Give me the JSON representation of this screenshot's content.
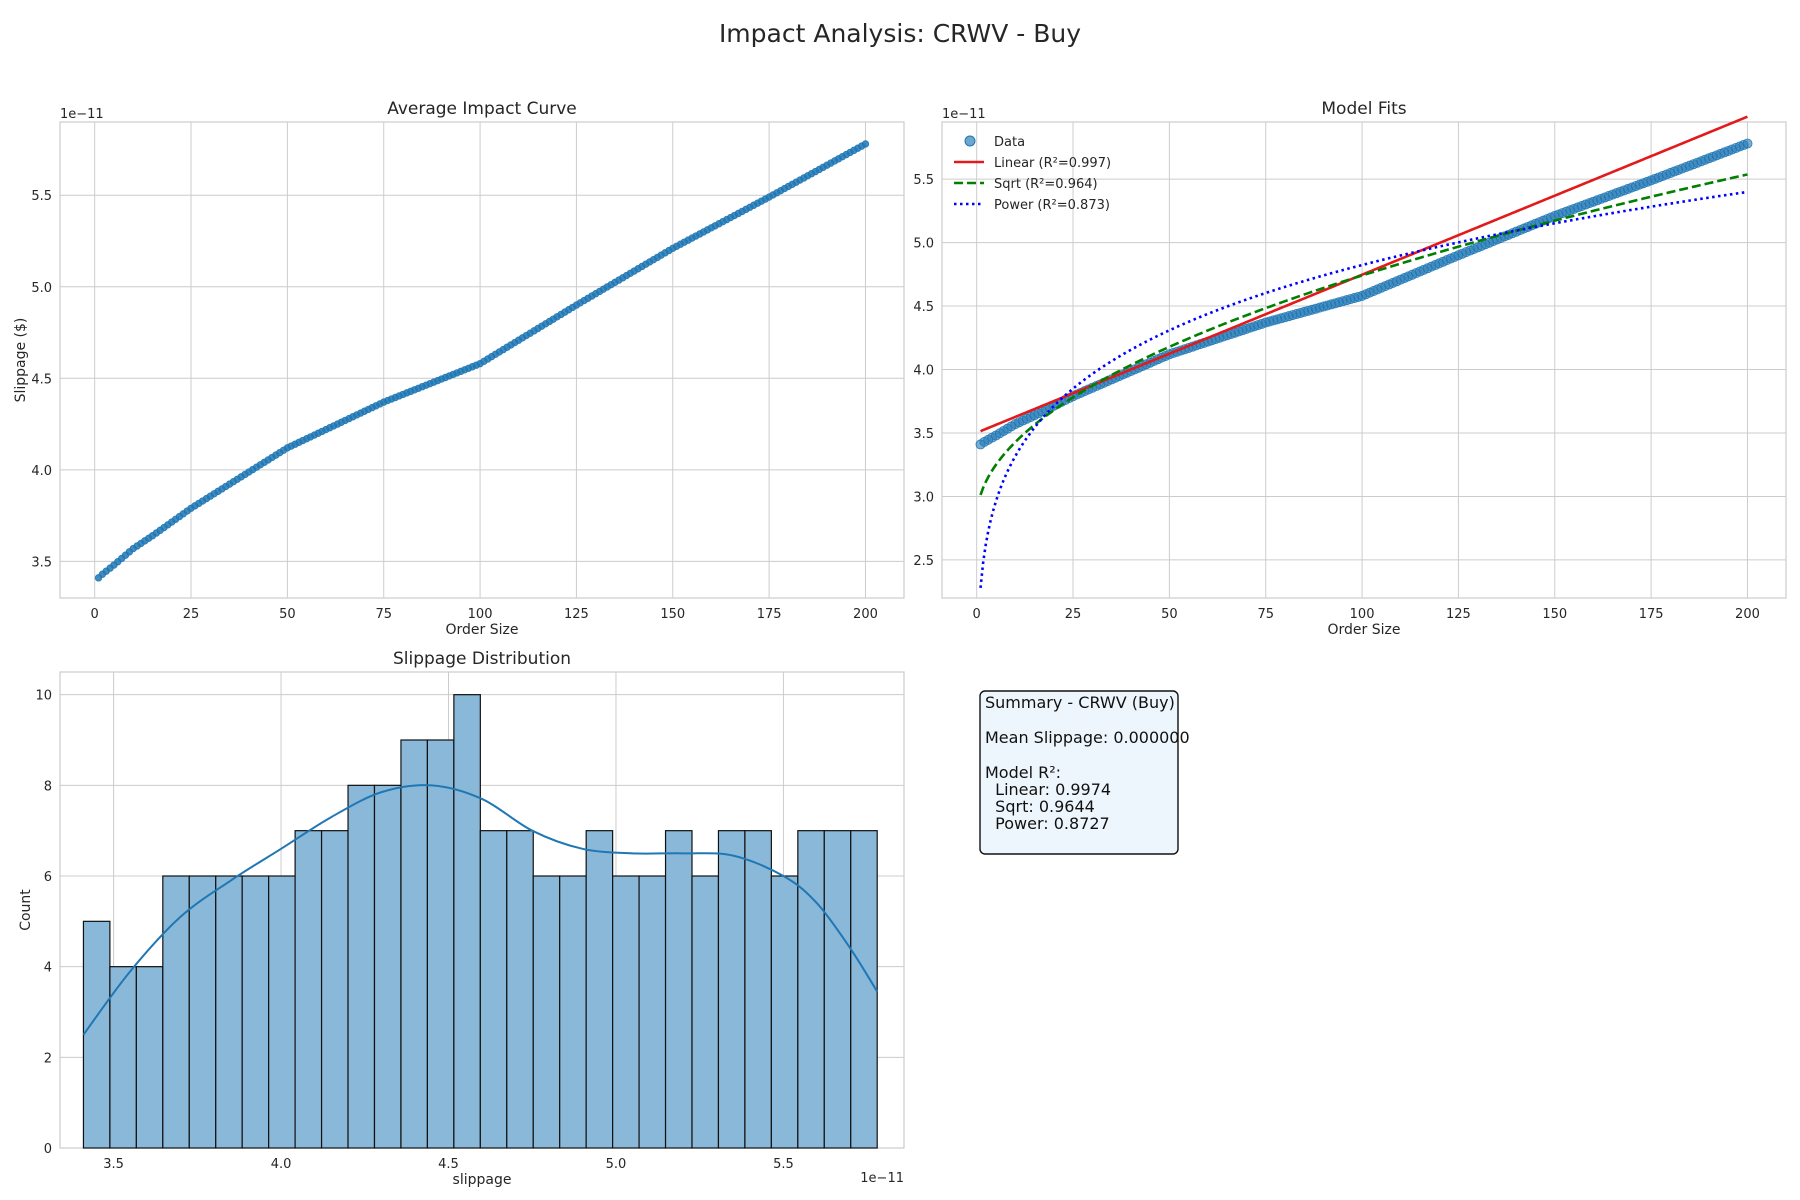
{
  "title": "Impact Analysis: CRWV - Buy",
  "colors": {
    "data": "#1f77b4",
    "linear": "#e31a1c",
    "sqrt": "#007f00",
    "power": "#0000ff",
    "hist_fill": "#8ab8d9",
    "summary_bg": "#eef6fd"
  },
  "chart_data": [
    {
      "type": "scatter",
      "title": "Average Impact Curve",
      "xlabel": "Order Size",
      "ylabel": "Slippage ($)",
      "offset_label": "1e−11",
      "xlim": [
        -9,
        210
      ],
      "ylim": [
        3.3,
        5.9
      ],
      "xticks": [
        0,
        25,
        50,
        75,
        100,
        125,
        150,
        175,
        200
      ],
      "yticks": [
        3.5,
        4.0,
        4.5,
        5.0,
        5.5
      ],
      "ytick_labels": [
        "3.5",
        "4.0",
        "4.5",
        "5.0",
        "5.5"
      ],
      "grid": true,
      "series": [
        {
          "style": "points",
          "x_range": [
            1,
            200
          ],
          "n_points": 200,
          "knots_x": [
            1,
            2,
            5,
            10,
            15,
            25,
            50,
            75,
            100,
            125,
            150,
            175,
            200
          ],
          "knots_y": [
            3.41,
            3.43,
            3.48,
            3.57,
            3.64,
            3.79,
            4.12,
            4.37,
            4.58,
            4.9,
            5.21,
            5.49,
            5.78
          ]
        }
      ]
    },
    {
      "type": "line",
      "title": "Model Fits",
      "xlabel": "Order Size",
      "ylabel": "",
      "offset_label": "1e−11",
      "xlim": [
        -9,
        210
      ],
      "ylim": [
        2.2,
        5.95
      ],
      "xticks": [
        0,
        25,
        50,
        75,
        100,
        125,
        150,
        175,
        200
      ],
      "yticks": [
        2.5,
        3.0,
        3.5,
        4.0,
        4.5,
        5.0,
        5.5
      ],
      "ytick_labels": [
        "2.5",
        "3.0",
        "3.5",
        "4.0",
        "4.5",
        "5.0",
        "5.5"
      ],
      "grid": true,
      "legend_position": "upper-left",
      "series": [
        {
          "name": "Data",
          "style": "points",
          "x_range": [
            1,
            200
          ],
          "n_points": 200,
          "knots_x": [
            1,
            2,
            5,
            10,
            15,
            25,
            50,
            75,
            100,
            125,
            150,
            175,
            200
          ],
          "knots_y": [
            3.41,
            3.43,
            3.48,
            3.57,
            3.64,
            3.79,
            4.12,
            4.37,
            4.58,
            4.9,
            5.21,
            5.49,
            5.78
          ]
        },
        {
          "name": "Linear (R²=0.997)",
          "style": "solid",
          "fn": "linear",
          "params": [
            3.502,
            0.01245
          ]
        },
        {
          "name": "Sqrt (R²=0.964)",
          "style": "dashed",
          "fn": "sqrt",
          "params": [
            2.82,
            0.1921
          ]
        },
        {
          "name": "Power (R²=0.873)",
          "style": "dotted",
          "fn": "power",
          "params": [
            2.28,
            0.1627
          ]
        }
      ]
    },
    {
      "type": "bar",
      "title": "Slippage Distribution",
      "xlabel": "slippage",
      "ylabel": "Count",
      "offset_label": "1e−11",
      "xlim": [
        3.34,
        5.86
      ],
      "ylim": [
        0,
        10.5
      ],
      "xticks": [
        3.5,
        4.0,
        4.5,
        5.0,
        5.5
      ],
      "xtick_labels": [
        "3.5",
        "4.0",
        "4.5",
        "5.0",
        "5.5"
      ],
      "yticks": [
        0,
        2,
        4,
        6,
        8,
        10
      ],
      "grid": true,
      "bins": {
        "start": 3.41,
        "end": 5.78
      },
      "counts": [
        5,
        4,
        4,
        6,
        6,
        6,
        6,
        6,
        7,
        7,
        8,
        8,
        9,
        9,
        10,
        7,
        7,
        6,
        6,
        7,
        6,
        6,
        7,
        6,
        7,
        7,
        6,
        7,
        7,
        7
      ],
      "kde": {
        "x": [
          3.41,
          3.55,
          3.7,
          3.85,
          4.0,
          4.15,
          4.3,
          4.45,
          4.6,
          4.75,
          4.9,
          5.05,
          5.2,
          5.35,
          5.5,
          5.6,
          5.7,
          5.78
        ],
        "y": [
          2.5,
          3.9,
          5.1,
          5.9,
          6.6,
          7.3,
          7.85,
          8.0,
          7.7,
          7.0,
          6.6,
          6.5,
          6.5,
          6.45,
          6.0,
          5.4,
          4.4,
          3.45
        ]
      }
    }
  ],
  "summary": {
    "title": "Summary - CRWV (Buy)",
    "mean": "Mean Slippage: 0.000000",
    "model_header": "Model R²:",
    "linear": "  Linear: 0.9974",
    "sqrt": "  Sqrt: 0.9644",
    "power": "  Power: 0.8727"
  }
}
